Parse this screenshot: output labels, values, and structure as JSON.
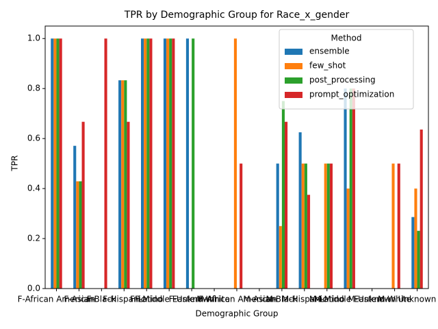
{
  "chart_data": {
    "type": "grouped_bar",
    "title": "TPR by Demographic Group for Race_x_gender",
    "x_label": "Demographic Group",
    "y_label": "TPR",
    "categories": [
      "F-African American",
      "F-Asian",
      "F-Black",
      "F-Hispanic",
      "F-Latino",
      "F-Middle Eastern",
      "F-Unknown",
      "F-White",
      "M-African American",
      "M-Asian",
      "M-Black",
      "M-Hispanic",
      "M-Latino",
      "M-Middle Eastern",
      "M-Unknown",
      "M-White",
      "Unknown"
    ],
    "legend_title": "Method",
    "legend_position": "upper right",
    "series": [
      {
        "name": "ensemble",
        "color": "#1f77b4",
        "values": [
          1,
          0.571,
          0,
          0.833,
          1,
          1,
          1,
          0,
          0,
          0,
          0.5,
          0.625,
          0,
          0.8,
          0,
          0,
          0.286
        ]
      },
      {
        "name": "few_shot",
        "color": "#ff7f0e",
        "values": [
          1,
          0.429,
          0,
          0.833,
          1,
          1,
          0,
          0,
          1,
          0,
          0.25,
          0.5,
          0.5,
          0.4,
          0,
          0.5,
          0.4
        ]
      },
      {
        "name": "post_processing",
        "color": "#2ca02c",
        "values": [
          1,
          0.429,
          0,
          0.833,
          1,
          1,
          1,
          0,
          0,
          0,
          0.75,
          0.5,
          0.5,
          0.8,
          0,
          0,
          0.231
        ]
      },
      {
        "name": "prompt_optimization",
        "color": "#d62728",
        "values": [
          1,
          0.667,
          1,
          0.667,
          1,
          1,
          0,
          0,
          0.5,
          0,
          0.667,
          0.375,
          0.5,
          0.8,
          0,
          0.5,
          0.636
        ]
      }
    ],
    "ylim": [
      0,
      1.05
    ],
    "yticks": [
      {
        "value": 0,
        "label": "0.0"
      },
      {
        "value": 0.2,
        "label": "0.2"
      },
      {
        "value": 0.4,
        "label": "0.4"
      },
      {
        "value": 0.6,
        "label": "0.6"
      },
      {
        "value": 0.8,
        "label": "0.8"
      },
      {
        "value": 1,
        "label": "1.0"
      }
    ]
  }
}
